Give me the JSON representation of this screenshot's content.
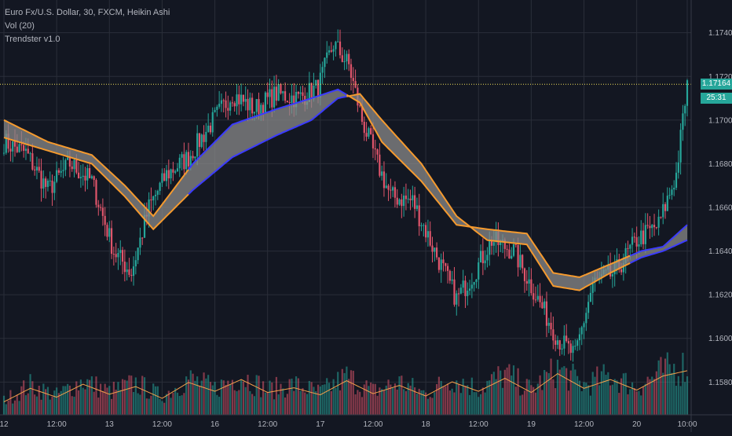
{
  "legend": {
    "symbol": "Euro Fx/U.S. Dollar, 30, FXCM, Heikin Ashi",
    "volume": "Vol (20)",
    "indicator": "Trendster v1.0"
  },
  "colors": {
    "background": "#131722",
    "grid": "#2a2e39",
    "up": "#26a69a",
    "down": "#e0556b",
    "ribbon_fill": "#8a8a8a",
    "ribbon_orange": "#f59a2e",
    "ribbon_blue": "#3b3bff",
    "vol_ma": "#f5a04a",
    "last_price_line": "#f2e05a",
    "badge": "#26a69a"
  },
  "price_badges": {
    "last_price": "1.17164",
    "countdown": "25:31"
  },
  "chart_data": {
    "type": "candlestick",
    "ylim": [
      1.1565,
      1.1755
    ],
    "yticks": [
      "1.17400",
      "1.17200",
      "1.17000",
      "1.16800",
      "1.16600",
      "1.16400",
      "1.16200",
      "1.16000",
      "1.15800"
    ],
    "ytick_values": [
      1.174,
      1.172,
      1.17,
      1.168,
      1.166,
      1.164,
      1.162,
      1.16,
      1.158
    ],
    "xticks": [
      "12",
      "12:00",
      "13",
      "12:00",
      "16",
      "12:00",
      "17",
      "12:00",
      "18",
      "12:00",
      "19",
      "12:00",
      "20",
      "10:00"
    ],
    "xtick_bars": [
      0,
      24,
      48,
      72,
      96,
      120,
      144,
      168,
      192,
      216,
      240,
      264,
      288,
      311
    ],
    "bar_count": 312,
    "last_price": 1.17164,
    "price_series": [
      [
        0,
        1.169
      ],
      [
        10,
        1.1685
      ],
      [
        20,
        1.1668
      ],
      [
        30,
        1.168
      ],
      [
        40,
        1.1672
      ],
      [
        50,
        1.164
      ],
      [
        58,
        1.163
      ],
      [
        66,
        1.166
      ],
      [
        74,
        1.1675
      ],
      [
        84,
        1.1683
      ],
      [
        94,
        1.1698
      ],
      [
        104,
        1.1712
      ],
      [
        114,
        1.1705
      ],
      [
        124,
        1.1712
      ],
      [
        134,
        1.171
      ],
      [
        143,
        1.1715
      ],
      [
        150,
        1.1735
      ],
      [
        157,
        1.1725
      ],
      [
        163,
        1.17
      ],
      [
        170,
        1.168
      ],
      [
        176,
        1.1665
      ],
      [
        186,
        1.1663
      ],
      [
        196,
        1.164
      ],
      [
        206,
        1.1618
      ],
      [
        214,
        1.163
      ],
      [
        222,
        1.1645
      ],
      [
        232,
        1.164
      ],
      [
        242,
        1.162
      ],
      [
        252,
        1.16
      ],
      [
        260,
        1.1592
      ],
      [
        268,
        1.1625
      ],
      [
        278,
        1.163
      ],
      [
        288,
        1.1645
      ],
      [
        298,
        1.1652
      ],
      [
        306,
        1.1675
      ],
      [
        311,
        1.17164
      ]
    ],
    "ribbon_fast": [
      [
        0,
        1.17
      ],
      [
        20,
        1.169
      ],
      [
        40,
        1.1684
      ],
      [
        55,
        1.167
      ],
      [
        68,
        1.1656
      ],
      [
        86,
        1.168
      ],
      [
        104,
        1.1698
      ],
      [
        124,
        1.1705
      ],
      [
        140,
        1.171
      ],
      [
        152,
        1.1714
      ],
      [
        162,
        1.1708
      ],
      [
        172,
        1.169
      ],
      [
        190,
        1.1672
      ],
      [
        206,
        1.1652
      ],
      [
        220,
        1.165
      ],
      [
        238,
        1.1648
      ],
      [
        250,
        1.163
      ],
      [
        262,
        1.1628
      ],
      [
        276,
        1.1634
      ],
      [
        290,
        1.164
      ],
      [
        300,
        1.1642
      ],
      [
        311,
        1.1652
      ]
    ],
    "ribbon_slow": [
      [
        0,
        1.1692
      ],
      [
        20,
        1.1686
      ],
      [
        40,
        1.168
      ],
      [
        55,
        1.1665
      ],
      [
        68,
        1.165
      ],
      [
        86,
        1.1668
      ],
      [
        104,
        1.1683
      ],
      [
        124,
        1.1693
      ],
      [
        140,
        1.17
      ],
      [
        152,
        1.171
      ],
      [
        162,
        1.1712
      ],
      [
        172,
        1.17
      ],
      [
        190,
        1.168
      ],
      [
        206,
        1.1656
      ],
      [
        220,
        1.1645
      ],
      [
        238,
        1.1643
      ],
      [
        250,
        1.1624
      ],
      [
        262,
        1.1622
      ],
      [
        276,
        1.163
      ],
      [
        290,
        1.1637
      ],
      [
        300,
        1.164
      ],
      [
        311,
        1.1645
      ]
    ],
    "volume_ylim": [
      0,
      100
    ],
    "volume_series": [
      [
        0,
        22
      ],
      [
        12,
        45
      ],
      [
        24,
        30
      ],
      [
        36,
        52
      ],
      [
        48,
        35
      ],
      [
        60,
        48
      ],
      [
        72,
        28
      ],
      [
        84,
        55
      ],
      [
        96,
        40
      ],
      [
        108,
        60
      ],
      [
        120,
        38
      ],
      [
        132,
        46
      ],
      [
        144,
        34
      ],
      [
        156,
        58
      ],
      [
        168,
        36
      ],
      [
        180,
        50
      ],
      [
        192,
        32
      ],
      [
        204,
        56
      ],
      [
        216,
        40
      ],
      [
        228,
        62
      ],
      [
        240,
        38
      ],
      [
        252,
        70
      ],
      [
        264,
        45
      ],
      [
        276,
        60
      ],
      [
        288,
        42
      ],
      [
        300,
        66
      ],
      [
        311,
        75
      ]
    ]
  }
}
